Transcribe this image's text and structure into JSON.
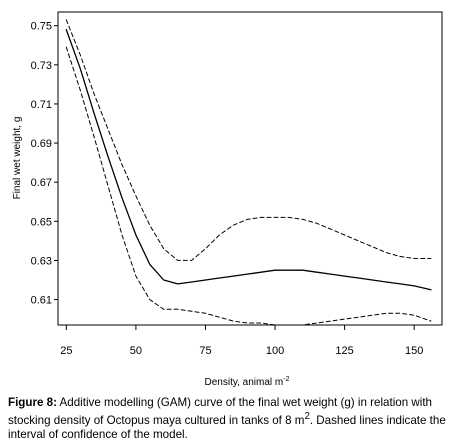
{
  "chart_data": {
    "type": "line",
    "title": "",
    "xlabel": "Density, animal m",
    "xlabel_sup": "-2",
    "ylabel": "Final wet weight, g",
    "xlim": [
      22,
      160
    ],
    "ylim": [
      0.597,
      0.757
    ],
    "x_ticks": [
      25,
      50,
      75,
      100,
      125,
      150
    ],
    "y_ticks": [
      0.61,
      0.63,
      0.65,
      0.67,
      0.69,
      0.71,
      0.73,
      0.75
    ],
    "y_tick_labels": [
      "0.61",
      "0.63",
      "0.65",
      "0.67",
      "0.69",
      "0.71",
      "0.73",
      "0.75"
    ],
    "x": [
      25,
      30,
      35,
      40,
      45,
      50,
      55,
      60,
      65,
      70,
      75,
      80,
      85,
      90,
      95,
      100,
      105,
      110,
      115,
      120,
      125,
      130,
      135,
      140,
      145,
      150,
      156
    ],
    "series": [
      {
        "style": "solid",
        "values": [
          0.748,
          0.728,
          0.705,
          0.683,
          0.662,
          0.643,
          0.628,
          0.62,
          0.618,
          0.619,
          0.62,
          0.621,
          0.622,
          0.623,
          0.624,
          0.625,
          0.625,
          0.625,
          0.624,
          0.623,
          0.622,
          0.621,
          0.62,
          0.619,
          0.618,
          0.617,
          0.615
        ]
      },
      {
        "style": "dashed",
        "values": [
          0.753,
          0.735,
          0.715,
          0.697,
          0.679,
          0.663,
          0.648,
          0.636,
          0.63,
          0.63,
          0.636,
          0.643,
          0.648,
          0.651,
          0.652,
          0.652,
          0.652,
          0.651,
          0.649,
          0.646,
          0.643,
          0.64,
          0.637,
          0.634,
          0.632,
          0.631,
          0.631
        ]
      },
      {
        "style": "dashed",
        "values": [
          0.739,
          0.717,
          0.693,
          0.668,
          0.643,
          0.622,
          0.61,
          0.605,
          0.605,
          0.604,
          0.603,
          0.601,
          0.599,
          0.598,
          0.598,
          0.597,
          0.597,
          0.597,
          0.598,
          0.599,
          0.6,
          0.601,
          0.602,
          0.603,
          0.603,
          0.602,
          0.599
        ]
      }
    ],
    "grid": false,
    "legend": "none"
  },
  "caption": {
    "label": "Figure 8:",
    "text_part1": " Additive modelling (GAM) curve of the final wet weight (g) in relation with stocking density of Octopus maya cultured in tanks of 8 m",
    "sup": "2",
    "text_part2": ". Dashed lines indicate the interval of confidence of the model."
  },
  "colors": {
    "line": "#000000",
    "axis": "#000000"
  }
}
